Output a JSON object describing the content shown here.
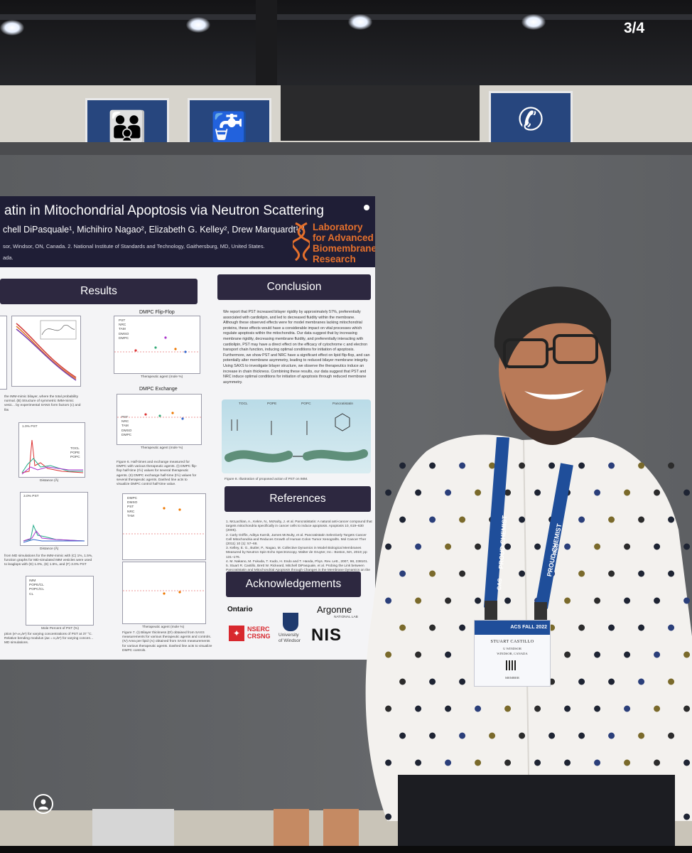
{
  "viewer": {
    "counter": "3/4",
    "profile_icon": "profile-icon"
  },
  "colors": {
    "poster_header": "#1f1e36",
    "section_header": "#2d2840",
    "lab_logo": "#e5702c",
    "board": "#626467",
    "lanyard": "#1f4e9a"
  },
  "signage": {
    "left_sign": "family-restroom-icon",
    "middle_sign": "drinking-fountain-icon",
    "right_sign": "telephone-icon"
  },
  "poster": {
    "title": "atin in Mitochondrial Apoptosis via Neutron Scattering",
    "authors": "chell DiPasquale¹, Michihiro Nagao², Elizabeth G. Kelley², Drew Marquardt¹˒³",
    "affiliation": "sor, Windsor, ON, Canada.  2. National Institute of Standards and Technology, Gaithersburg, MD, United States.",
    "affiliation2": "ada.",
    "lab_logo": [
      "Laboratory",
      "for Advanced",
      "Biomembrane",
      "Research"
    ],
    "results": {
      "header": "Results",
      "flipflop_title": "DMPC Flip-Flop",
      "flipflop_legend": [
        "PST",
        "NRC",
        "TAM",
        "DMSO",
        "DMPC"
      ],
      "flipflop_xlabel": "Therapeutic agent (mole %)",
      "exchange_title": "DMPC Exchange",
      "exchange_legend": [
        "PST",
        "NRC",
        "TAM",
        "DMSO",
        "DMPC"
      ],
      "exchange_xlabel": "Therapeutic agent (mole %)",
      "fig6_caption": "Figure 6. Half-times and exchange measured for DMPC with various therapeutic agents. (I) DMPC flip-flop half-time (t½) values for several therapeutic agents. (II) DMPC exchange half-time (t½) values for several therapeutic agents. Dashed line acts to visualize DMPC control half-time value.",
      "left_caption1": "the IMM-mimic bilayer, where the total probability normal. (B) Structure of symmetric IMM-mimic vesic... by experimental SANS form factors (c) and fits",
      "d_plot_legend": [
        "TOCL",
        "POPE",
        "POPC"
      ],
      "d_label": "1.0% PST",
      "f_label": "3.0% PST",
      "distance_label": "Distance (Å)",
      "left_caption2": "from MD simulations for the IMM-mimic with (C) 1%, 1.5%, function graphs for MD-simulated IMM vesicles were used to leaglops with (D) 1.0%, (E) 1.5%, and (F) 3.0% PST",
      "h_legend": [
        "IMM",
        "POPE/CL",
        "POPC/CL",
        "CL"
      ],
      "mole_label": "Mole Percent of PST (%)",
      "left_caption3": "ption (κᶜ=κ₀/κᶜ) for varying concentrations of PST at 37 °C. Relative bending modulus (Δκ = κ₀/κᶜ) for varying concen... MD simulations.",
      "thickness_legend": [
        "DMPC",
        "DMSO",
        "PST",
        "NRC",
        "TAM"
      ],
      "thickness_xlabel": "Therapeutic agent (mole %)",
      "fig7_caption": "Figure 7. (I) Bilayer thickness (Dᴵ) obtained from SAXS measurements for various therapeutic agents and controls. (IV) Area per lipid (Aₗ) obtained from SAXS measurements for various therapeutic agents. Dashed line acts to visualize DMPC controls."
    },
    "conclusion": {
      "header": "Conclusion",
      "text": "We report that PST increased bilayer rigidity by approximately 57%, preferentially associated with cardiolipin, and led to decreased fluidity within the membrane. Although these observed effects were for model membranes lacking mitochondrial proteins, these effects would have a considerable impact on vital processes which regulate apoptosis within the mitochondria. Our data suggest that by increasing membrane rigidity, decreasing membrane fluidity, and preferentially interacting with cardiolipin, PST may have a direct effect on the efficacy of cytochrome c and electron transport chain function, inducing optimal conditions for initiation of apoptosis. Furthermore, we show PST and NRC have a significant effect on lipid flip-flop, and can potentially alter membrane asymmetry, leading to reduced bilayer membrane integrity. Using SAXS to investigate bilayer structure, we observe the therapeutics induce an increase in chain thickness. Combining these results, our data suggest that PST and NRC induce optimal conditions for initiation of apoptosis through reduced membrane asymmetry.",
      "fig_labels": [
        "TOCL",
        "POPE",
        "POPC",
        "Pancratistatin"
      ],
      "fig8_caption": "Figure 8. Illustration of proposed action of PST on IMM."
    },
    "references": {
      "header": "References",
      "items": [
        "1. McLachlan, A., Kekre, N., McNulty, J. et al. Pancratistatin: A natural anti-cancer compound that targets mitochondria specifically in cancer cells to induce apoptosis. Apoptosis 10, 619–630 (2005).",
        "2. Carly Griffin, Aditya Karnik, James McNulty, et al. Pancratistatin Selectively Targets Cancer Cell Mitochondria and Reduces Growth of Human Colon Tumor Xenografts. Mol Cancer Ther (2011) 10 (1): 57–68.",
        "3. Kelley, E. G., Butler, P., Nagao, M. Collective Dynamics in Model Biological Membranes Measured by Neutron Spin Echo Spectroscopy. Walter de Gruyter, Inc.: Boston, MA, 2019; pp 131–176.",
        "4. M. Nakano, M. Fukuda, T. Kudo, H. Endo and T. Handa, Phys. Rev. Lett., 2007, 98, 238101.",
        "5. Stuart R. Castillo, Brett W. Rickeard, Mitchell DiPasquale, et al. Probing the Link between Pancratistatin and Mitochondrial Apoptosis through Changes in the Membrane Dynamics on the Nanoscale. Molecular Pharmaceutics 2022 19 (6), 1839-1852."
      ]
    },
    "acknowledgements": {
      "header": "Acknowledgements",
      "ontario": "Ontario",
      "argonne": "Argonne",
      "argonne_sub": "NATIONAL LAB",
      "nserc": [
        "NSERC",
        "CRSNG"
      ],
      "windsor": [
        "University",
        "of Windsor"
      ],
      "nist": "NIS"
    }
  },
  "badge": {
    "lanyard_left": "PROUD CHEMIST",
    "lanyard_left2": "CAS",
    "lanyard_right": "PROUD CHEMIST",
    "lanyard_right2": "ACS",
    "event": "ACS FALL 2022",
    "name": "STUART CASTILLO",
    "org": "U WINDSOR",
    "location": "WINDSOR, CANADA",
    "role": "MEMBER"
  }
}
